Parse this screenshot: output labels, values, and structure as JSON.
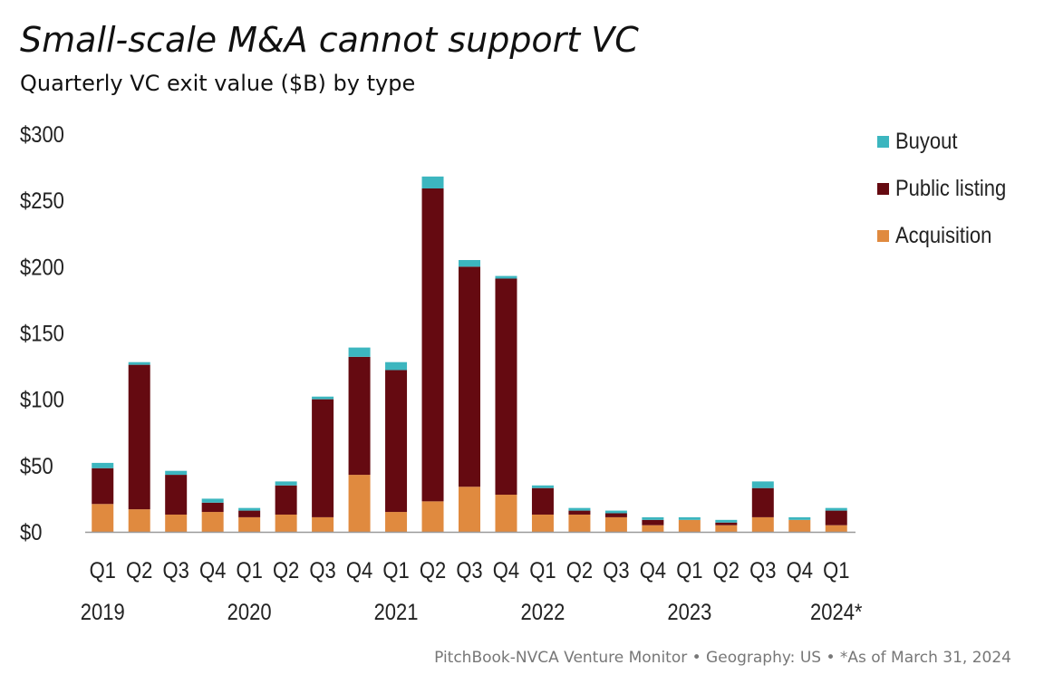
{
  "title": "Small-scale M&A cannot support VC",
  "subtitle": "Quarterly VC exit value ($B) by type",
  "source": "PitchBook-NVCA Venture Monitor  •  Geography: US  •  *As of March 31, 2024",
  "colors": {
    "acquisition": "#E08A3F",
    "public_listing": "#650A11",
    "buyout": "#3CB6BF"
  },
  "chart_data": {
    "type": "bar",
    "stacked": true,
    "categories": [
      "Q1",
      "Q2",
      "Q3",
      "Q4",
      "Q1",
      "Q2",
      "Q3",
      "Q4",
      "Q1",
      "Q2",
      "Q3",
      "Q4",
      "Q1",
      "Q2",
      "Q3",
      "Q4",
      "Q1",
      "Q2",
      "Q3",
      "Q4",
      "Q1"
    ],
    "year_labels": [
      {
        "label": "2019",
        "index": 0
      },
      {
        "label": "2020",
        "index": 4
      },
      {
        "label": "2021",
        "index": 8
      },
      {
        "label": "2022",
        "index": 12
      },
      {
        "label": "2023",
        "index": 16
      },
      {
        "label": "2024*",
        "index": 20
      }
    ],
    "series": [
      {
        "name": "Acquisition",
        "color": "#E08A3F",
        "values": [
          21,
          17,
          13,
          15,
          11,
          13,
          11,
          43,
          15,
          23,
          34,
          28,
          13,
          13,
          11,
          5,
          9,
          5,
          11,
          9,
          5
        ]
      },
      {
        "name": "Public listing",
        "color": "#650A11",
        "values": [
          27,
          109,
          30,
          7,
          5,
          22,
          89,
          89,
          107,
          236,
          166,
          163,
          20,
          3,
          3,
          4,
          0,
          2,
          22,
          0,
          11
        ]
      },
      {
        "name": "Buyout",
        "color": "#3CB6BF",
        "values": [
          4,
          2,
          3,
          3,
          2,
          3,
          2,
          7,
          6,
          9,
          5,
          2,
          2,
          2,
          2,
          2,
          2,
          2,
          5,
          2,
          2
        ]
      }
    ],
    "legend_order": [
      "Buyout",
      "Public listing",
      "Acquisition"
    ],
    "yticks": [
      "$0",
      "$50",
      "$100",
      "$150",
      "$200",
      "$250",
      "$300"
    ],
    "ytick_values": [
      0,
      50,
      100,
      150,
      200,
      250,
      300
    ],
    "ylim": [
      0,
      300
    ],
    "xlabel": "",
    "ylabel": "",
    "grid": false,
    "legend_position": "top-right"
  }
}
